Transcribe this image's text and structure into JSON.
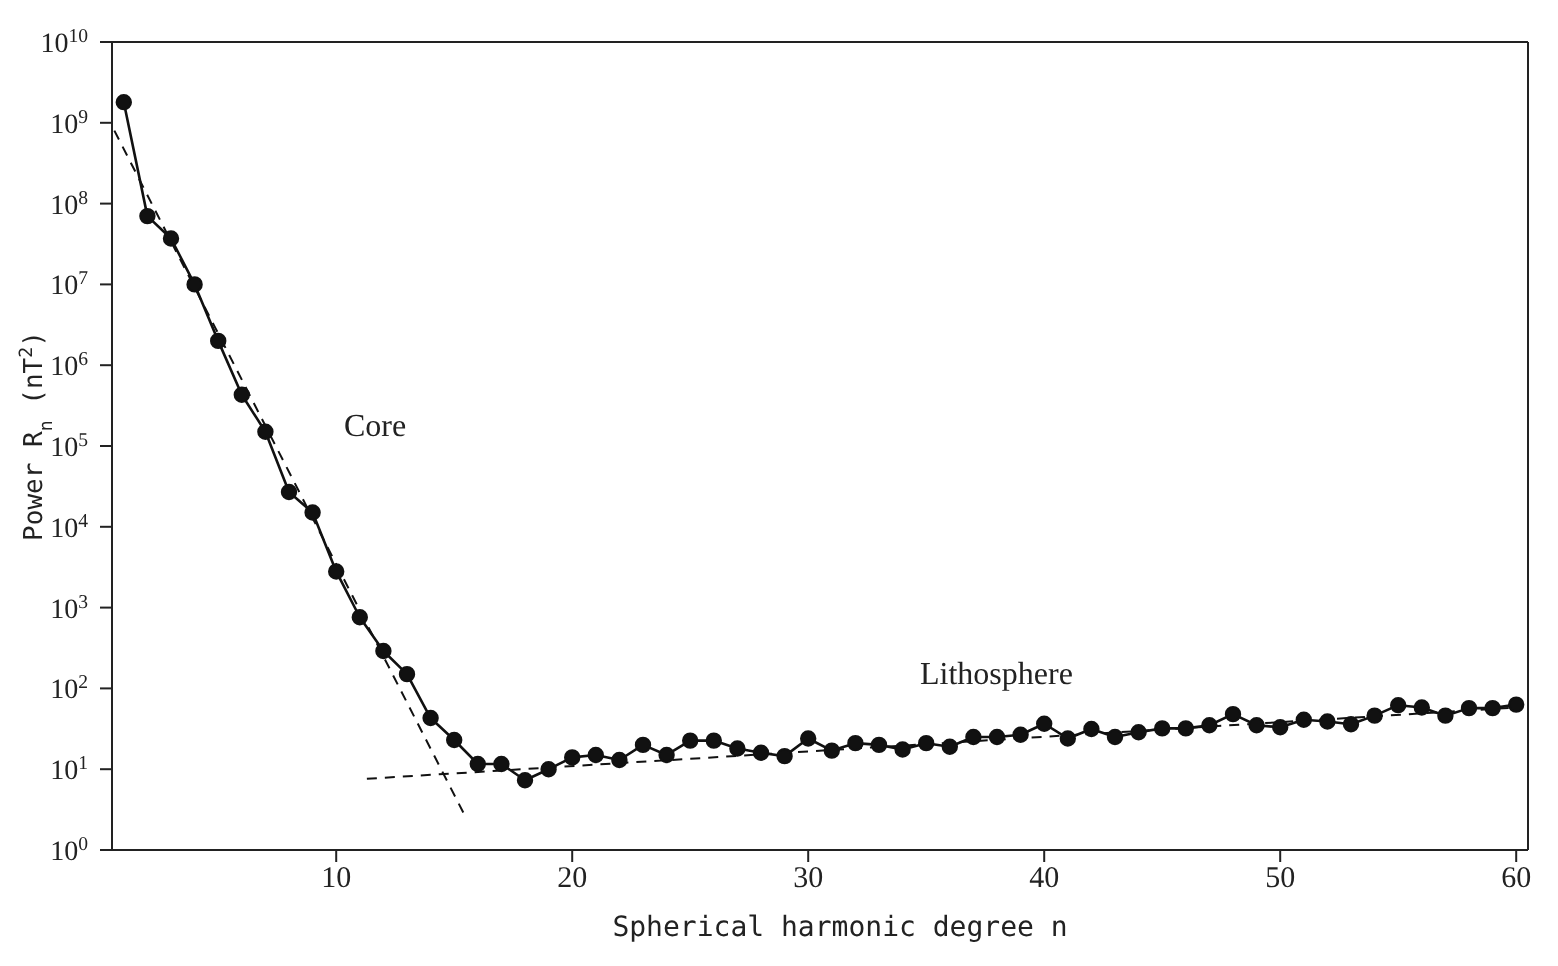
{
  "chart_data": {
    "type": "line",
    "xlabel": "Spherical harmonic degree n",
    "ylabel": "Power R$_{n}$ (nT$^{2}$)",
    "x": [
      1,
      2,
      3,
      4,
      5,
      6,
      7,
      8,
      9,
      10,
      11,
      12,
      13,
      14,
      15,
      16,
      17,
      18,
      19,
      20,
      21,
      22,
      23,
      24,
      25,
      26,
      27,
      28,
      29,
      30,
      31,
      32,
      33,
      34,
      35,
      36,
      37,
      38,
      39,
      40,
      41,
      42,
      43,
      44,
      45,
      46,
      47,
      48,
      49,
      50,
      51,
      52,
      53,
      54,
      55,
      56,
      57,
      58,
      59,
      60
    ],
    "series": [
      {
        "color": "#111111",
        "values": [
          1800000000,
          70000000,
          37000000,
          10000000,
          2000000,
          430000,
          150000,
          27000,
          15000,
          2800,
          760,
          290,
          150,
          43,
          23,
          11.6,
          11.6,
          7.3,
          10,
          14,
          15,
          13,
          20,
          15,
          22.6,
          22.6,
          18,
          16,
          14.5,
          24,
          17,
          21,
          20,
          17.5,
          21,
          19,
          25,
          25,
          26.7,
          36.5,
          24,
          31.5,
          25,
          28.7,
          32,
          32,
          35,
          48,
          35,
          33,
          41,
          39,
          36,
          46,
          62,
          58,
          46,
          57,
          57,
          63
        ]
      },
      {
        "type": "line",
        "x": [
          0.6,
          15.5
        ],
        "values": [
          800000000,
          2.5
        ],
        "color": "#111111",
        "line_style": "dashed",
        "marker": "none"
      },
      {
        "type": "line",
        "x": [
          11.3,
          60
        ],
        "values": [
          7.6,
          58
        ],
        "color": "#111111",
        "line_style": "dashed",
        "marker": "none"
      }
    ],
    "marker": "circle",
    "line_style": "solid",
    "log": "y",
    "xlim": [
      0.5,
      60.5
    ],
    "xticks": [
      10,
      20,
      30,
      40,
      50,
      60
    ],
    "ylim": [
      1,
      10000000000
    ],
    "yticks": [
      {
        "value": 1,
        "label": "10$^{0}$"
      },
      {
        "value": 10,
        "label": "10$^{1}$"
      },
      {
        "value": 100,
        "label": "10$^{2}$"
      },
      {
        "value": 1000,
        "label": "10$^{3}$"
      },
      {
        "value": 10000,
        "label": "10$^{4}$"
      },
      {
        "value": 100000,
        "label": "10$^{5}$"
      },
      {
        "value": 1000000,
        "label": "10$^{6}$"
      },
      {
        "value": 10000000,
        "label": "10$^{7}$"
      },
      {
        "value": 100000000,
        "label": "10$^{8}$"
      },
      {
        "value": 1000000000,
        "label": "10$^{9}$"
      },
      {
        "value": 10000000000,
        "label": "10$^{10}$"
      }
    ],
    "annotations": [
      "Core",
      "Lithosphere"
    ]
  }
}
